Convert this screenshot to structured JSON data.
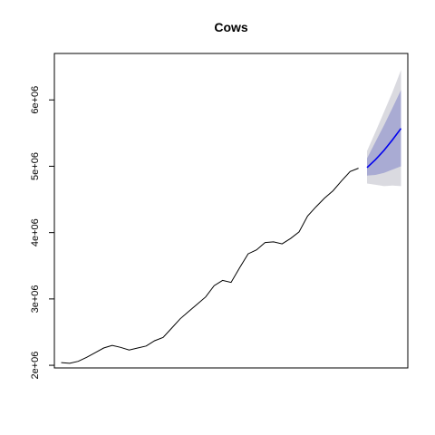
{
  "chart_data": {
    "type": "line",
    "title": "Cows",
    "xlabel": "",
    "ylabel": "",
    "ylim": [
      1960000,
      6700000
    ],
    "y_ticks": [
      {
        "value": 2000000,
        "label": "2e+06"
      },
      {
        "value": 3000000,
        "label": "3e+06"
      },
      {
        "value": 4000000,
        "label": "4e+06"
      },
      {
        "value": 5000000,
        "label": "5e+06"
      },
      {
        "value": 6000000,
        "label": "6e+06"
      }
    ],
    "x_ticks_visible": false,
    "grid": false,
    "legend": "none",
    "series": [
      {
        "role": "history",
        "color": "#000000",
        "x": [
          1,
          2,
          3,
          4,
          5,
          6,
          7,
          8,
          9,
          10,
          11,
          12,
          13,
          14,
          15,
          16,
          17,
          18,
          19,
          20,
          21,
          22,
          23,
          24,
          25,
          26,
          27,
          28,
          29,
          30,
          31,
          32,
          33,
          34,
          35,
          36
        ],
        "values": [
          2040000,
          2030000,
          2060000,
          2120000,
          2190000,
          2260000,
          2300000,
          2270000,
          2230000,
          2260000,
          2290000,
          2370000,
          2420000,
          2560000,
          2700000,
          2810000,
          2920000,
          3030000,
          3200000,
          3280000,
          3250000,
          3470000,
          3680000,
          3740000,
          3850000,
          3860000,
          3830000,
          3910000,
          4010000,
          4250000,
          4390000,
          4520000,
          4630000,
          4780000,
          4920000,
          4970000
        ]
      },
      {
        "role": "forecast",
        "color": "#0000ee",
        "x": [
          37,
          38,
          39,
          40,
          41
        ],
        "values": [
          4980000,
          5100000,
          5240000,
          5400000,
          5570000
        ]
      }
    ],
    "intervals": [
      {
        "level": "outer",
        "color": "#dadae0",
        "x": [
          37,
          38,
          39,
          40,
          41
        ],
        "lower": [
          4740000,
          4720000,
          4700000,
          4710000,
          4700000
        ],
        "upper": [
          5230000,
          5520000,
          5820000,
          6120000,
          6450000
        ]
      },
      {
        "level": "inner",
        "color": "#a9abd3",
        "x": [
          37,
          38,
          39,
          40,
          41
        ],
        "lower": [
          4860000,
          4870000,
          4900000,
          4950000,
          5000000
        ],
        "upper": [
          5120000,
          5370000,
          5620000,
          5880000,
          6150000
        ]
      }
    ]
  }
}
